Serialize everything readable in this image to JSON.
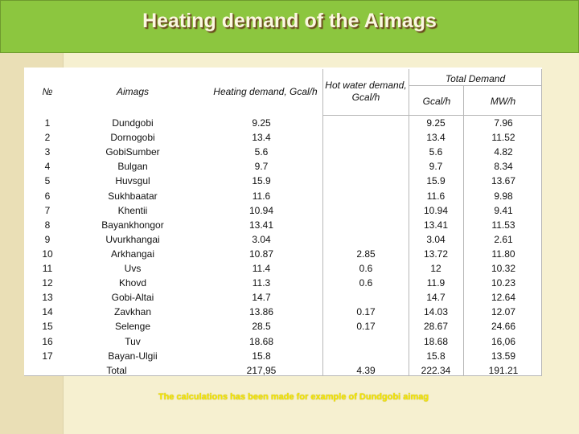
{
  "title": "Heating demand of the Aimags",
  "table": {
    "headers": {
      "no": "№",
      "aimag": "Aimags",
      "heating": "Heating demand, Gcal/h",
      "hotwater": "Hot water demand, Gcal/h",
      "total": "Total Demand",
      "gcal": "Gcal/h",
      "mw": "MW/h"
    },
    "rows": [
      {
        "no": "1",
        "aimag": "Dundgobi",
        "heating": "9.25",
        "hotwater": "",
        "gcal": "9.25",
        "mw": "7.96"
      },
      {
        "no": "2",
        "aimag": "Dornogobi",
        "heating": "13.4",
        "hotwater": "",
        "gcal": "13.4",
        "mw": "11.52"
      },
      {
        "no": "3",
        "aimag": "GobiSumber",
        "heating": "5.6",
        "hotwater": "",
        "gcal": "5.6",
        "mw": "4.82"
      },
      {
        "no": "4",
        "aimag": "Bulgan",
        "heating": "9.7",
        "hotwater": "",
        "gcal": "9.7",
        "mw": "8.34"
      },
      {
        "no": "5",
        "aimag": "Huvsgul",
        "heating": "15.9",
        "hotwater": "",
        "gcal": "15.9",
        "mw": "13.67"
      },
      {
        "no": "6",
        "aimag": "Sukhbaatar",
        "heating": "11.6",
        "hotwater": "",
        "gcal": "11.6",
        "mw": "9.98"
      },
      {
        "no": "7",
        "aimag": "Khentii",
        "heating": "10.94",
        "hotwater": "",
        "gcal": "10.94",
        "mw": "9.41"
      },
      {
        "no": "8",
        "aimag": "Bayankhongor",
        "heating": "13.41",
        "hotwater": "",
        "gcal": "13.41",
        "mw": "11.53"
      },
      {
        "no": "9",
        "aimag": "Uvurkhangai",
        "heating": "3.04",
        "hotwater": "",
        "gcal": "3.04",
        "mw": "2.61"
      },
      {
        "no": "10",
        "aimag": "Arkhangai",
        "heating": "10.87",
        "hotwater": "2.85",
        "gcal": "13.72",
        "mw": "11.80"
      },
      {
        "no": "11",
        "aimag": "Uvs",
        "heating": "11.4",
        "hotwater": "0.6",
        "gcal": "12",
        "mw": "10.32"
      },
      {
        "no": "12",
        "aimag": "Khovd",
        "heating": "11.3",
        "hotwater": "0.6",
        "gcal": "11.9",
        "mw": "10.23"
      },
      {
        "no": "13",
        "aimag": "Gobi-Altai",
        "heating": "14.7",
        "hotwater": "",
        "gcal": "14.7",
        "mw": "12.64"
      },
      {
        "no": "14",
        "aimag": "Zavkhan",
        "heating": "13.86",
        "hotwater": "0.17",
        "gcal": "14.03",
        "mw": "12.07"
      },
      {
        "no": "15",
        "aimag": "Selenge",
        "heating": "28.5",
        "hotwater": "0.17",
        "gcal": "28.67",
        "mw": "24.66"
      },
      {
        "no": "16",
        "aimag": "Tuv",
        "heating": "18.68",
        "hotwater": "",
        "gcal": "18.68",
        "mw": "16,06"
      },
      {
        "no": "17",
        "aimag": "Bayan-Ulgii",
        "heating": "15.8",
        "hotwater": "",
        "gcal": "15.8",
        "mw": "13.59"
      }
    ],
    "total": {
      "label": "Total",
      "heating": "217,95",
      "hotwater": "4.39",
      "gcal": "222.34",
      "mw": "191.21"
    }
  },
  "footnote": "The calculations has been made for example of Dundgobi aimag"
}
